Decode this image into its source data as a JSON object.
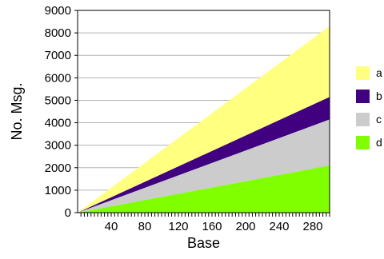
{
  "chart_data": {
    "type": "area",
    "stacked": true,
    "xlabel": "Base",
    "ylabel": "No. Msg.",
    "xlim": [
      0,
      300
    ],
    "ylim": [
      0,
      9000
    ],
    "x_ticks": [
      40,
      80,
      120,
      160,
      200,
      240,
      280
    ],
    "y_ticks": [
      0,
      1000,
      2000,
      3000,
      4000,
      5000,
      6000,
      7000,
      8000,
      9000
    ],
    "grid": "horizontal",
    "legend_position": "right",
    "x": [
      0,
      300
    ],
    "series": [
      {
        "name": "d",
        "color": "#80ff00",
        "values": [
          0,
          2100
        ]
      },
      {
        "name": "c",
        "color": "#cccccc",
        "values": [
          0,
          2050
        ]
      },
      {
        "name": "b",
        "color": "#400080",
        "values": [
          0,
          1000
        ]
      },
      {
        "name": "a",
        "color": "#ffff80",
        "values": [
          0,
          3150
        ]
      }
    ],
    "legend": [
      {
        "name": "a",
        "color": "#ffff80"
      },
      {
        "name": "b",
        "color": "#400080"
      },
      {
        "name": "c",
        "color": "#cccccc"
      },
      {
        "name": "d",
        "color": "#80ff00"
      }
    ]
  }
}
